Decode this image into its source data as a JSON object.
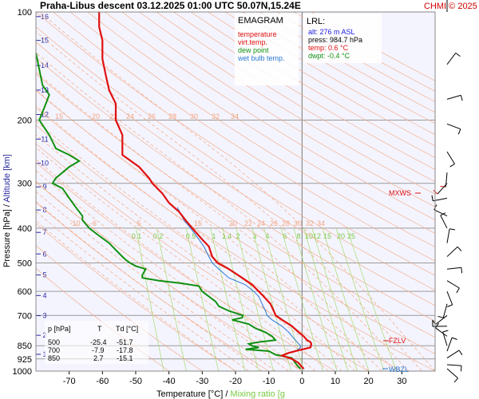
{
  "header": {
    "title": "Praha-Libus   descent   03.12.2025 01:00 UTC  50.07N,15.24E",
    "copyright": "CHMI © 2025"
  },
  "legend": {
    "heading": "EMAGRAM",
    "items": [
      {
        "label": "temperature",
        "color": "#e01010"
      },
      {
        "label": "virt.temp.",
        "color": "#e01010"
      },
      {
        "label": "dew point",
        "color": "#109010"
      },
      {
        "label": "wet bulb temp.",
        "color": "#2a78d0"
      }
    ]
  },
  "lrl": {
    "heading": "LRL:",
    "lines": [
      {
        "text": "alt: 276 m ASL",
        "color": "#1a1ae0"
      },
      {
        "text": "press: 984.7 hPa",
        "color": "#000000"
      },
      {
        "text": "temp: 0.6 °C",
        "color": "#e01010"
      },
      {
        "text": "dwpt: -0.4 °C",
        "color": "#109010"
      }
    ]
  },
  "data_table": {
    "headers": [
      "p [hPa]",
      "T",
      "Td [°C]"
    ],
    "rows": [
      [
        "500",
        "-25.4",
        "-51.7"
      ],
      [
        "700",
        "-7.9",
        "-17.8"
      ],
      [
        "850",
        "2.7",
        "-15.1"
      ]
    ]
  },
  "levels": {
    "mxws": {
      "label": "MXWS",
      "p": 300
    },
    "fzlv": {
      "label": "FZLV",
      "p": 825
    },
    "wbzl": {
      "label": "WBZL",
      "p": 985
    }
  },
  "dry_adiabat_labels": [
    "15",
    "20",
    "22",
    "24",
    "26",
    "28",
    "30",
    "32",
    "34"
  ],
  "moist_adiabat_labels": [
    "-10",
    "-6",
    "5",
    "15",
    "20",
    "22",
    "24",
    "26",
    "28",
    "30",
    "32",
    "34"
  ],
  "mixing_ratio_labels": [
    "0.1",
    "0.2",
    "0.5",
    "1",
    "1.4",
    "2",
    "3",
    "4",
    "6",
    "8",
    "10",
    "12",
    "15",
    "20",
    "25"
  ],
  "chart_data": {
    "type": "line",
    "title": "Praha-Libus   descent   03.12.2025 01:00 UTC  50.07N,15.24E",
    "xlabel": "Temperature [°C]  /  Mixing ratio [g/kg]",
    "ylabel": "Pressure [hPa]  /  Altitude [km]",
    "xlim": [
      -80,
      40
    ],
    "xticks": [
      -70,
      -60,
      -50,
      -40,
      -30,
      -20,
      -10,
      0,
      10,
      20,
      30
    ],
    "ylim": [
      1000,
      100
    ],
    "yscale": "log",
    "yticks": [
      100,
      200,
      300,
      400,
      500,
      600,
      700,
      850,
      925,
      1000
    ],
    "altitude_ticks_km": [
      "1",
      "2",
      "3",
      "4",
      "5",
      "6",
      "7",
      "8",
      "9",
      "10",
      "11",
      "12",
      "13",
      "14",
      "15",
      "16"
    ],
    "grid": true,
    "series": [
      {
        "name": "temperature",
        "color": "#e01010",
        "p": [
          100,
          110,
          120,
          135,
          150,
          165,
          180,
          200,
          220,
          250,
          270,
          290,
          300,
          320,
          340,
          360,
          380,
          400,
          430,
          450,
          480,
          500,
          520,
          550,
          575,
          600,
          620,
          650,
          680,
          700,
          720,
          750,
          780,
          800,
          820,
          830,
          840,
          850,
          860,
          875,
          890,
          905,
          925,
          950,
          975,
          985
        ],
        "t": [
          -61,
          -61,
          -60,
          -60,
          -59,
          -58,
          -56,
          -56,
          -54,
          -54,
          -49,
          -46,
          -45,
          -42,
          -40,
          -37,
          -35,
          -33,
          -30,
          -28,
          -27,
          -25.4,
          -22,
          -18,
          -15,
          -13,
          -11.5,
          -9.5,
          -8.5,
          -7.9,
          -6,
          -3,
          -1,
          0.5,
          1.5,
          2.5,
          2.8,
          2.7,
          2.5,
          -1,
          -4,
          -6,
          -3,
          -1,
          0,
          0.6
        ]
      },
      {
        "name": "dew point",
        "color": "#109010",
        "p": [
          130,
          160,
          170,
          180,
          200,
          220,
          240,
          250,
          260,
          270,
          280,
          290,
          300,
          310,
          330,
          350,
          370,
          380,
          400,
          420,
          440,
          460,
          480,
          490,
          500,
          510,
          520,
          540,
          550,
          560,
          570,
          580,
          600,
          620,
          640,
          660,
          680,
          700,
          710,
          720,
          740,
          760,
          780,
          800,
          820,
          830,
          840,
          850,
          860,
          870,
          880,
          900,
          920,
          950,
          975,
          985
        ],
        "td": [
          -80,
          -78,
          -76,
          -77,
          -79,
          -76,
          -74,
          -70,
          -67,
          -70,
          -72,
          -74,
          -75,
          -72,
          -70,
          -68,
          -66,
          -66,
          -64,
          -61,
          -58,
          -56,
          -54,
          -53,
          -51.7,
          -50,
          -47,
          -48,
          -48,
          -43,
          -36,
          -31,
          -30,
          -28,
          -26,
          -25,
          -22,
          -17.8,
          -18,
          -21,
          -16,
          -14,
          -11,
          -9,
          -8,
          -13,
          -16,
          -15.1,
          -13,
          -17,
          -10,
          -8,
          -3,
          -2,
          -1,
          -0.4
        ]
      },
      {
        "name": "wet bulb temp.",
        "color": "#2a78d0",
        "p": [
          350,
          380,
          400,
          430,
          450,
          480,
          500,
          520,
          550,
          575,
          600,
          620,
          650,
          680,
          700,
          720,
          750,
          780,
          800,
          820,
          840,
          850,
          860,
          875,
          890,
          905,
          925,
          950,
          975,
          985
        ],
        "tw": [
          -37.5,
          -35.5,
          -33.5,
          -31,
          -29.5,
          -28,
          -27,
          -25,
          -22,
          -17,
          -14.5,
          -13,
          -12,
          -11,
          -10.5,
          -9,
          -6,
          -4,
          -3,
          -2,
          -1,
          -0.5,
          -0.5,
          -1.5,
          -4,
          -6,
          -3,
          -1,
          0,
          0.3
        ]
      }
    ],
    "annotations": [
      "MXWS",
      "FZLV",
      "WBZL"
    ]
  }
}
